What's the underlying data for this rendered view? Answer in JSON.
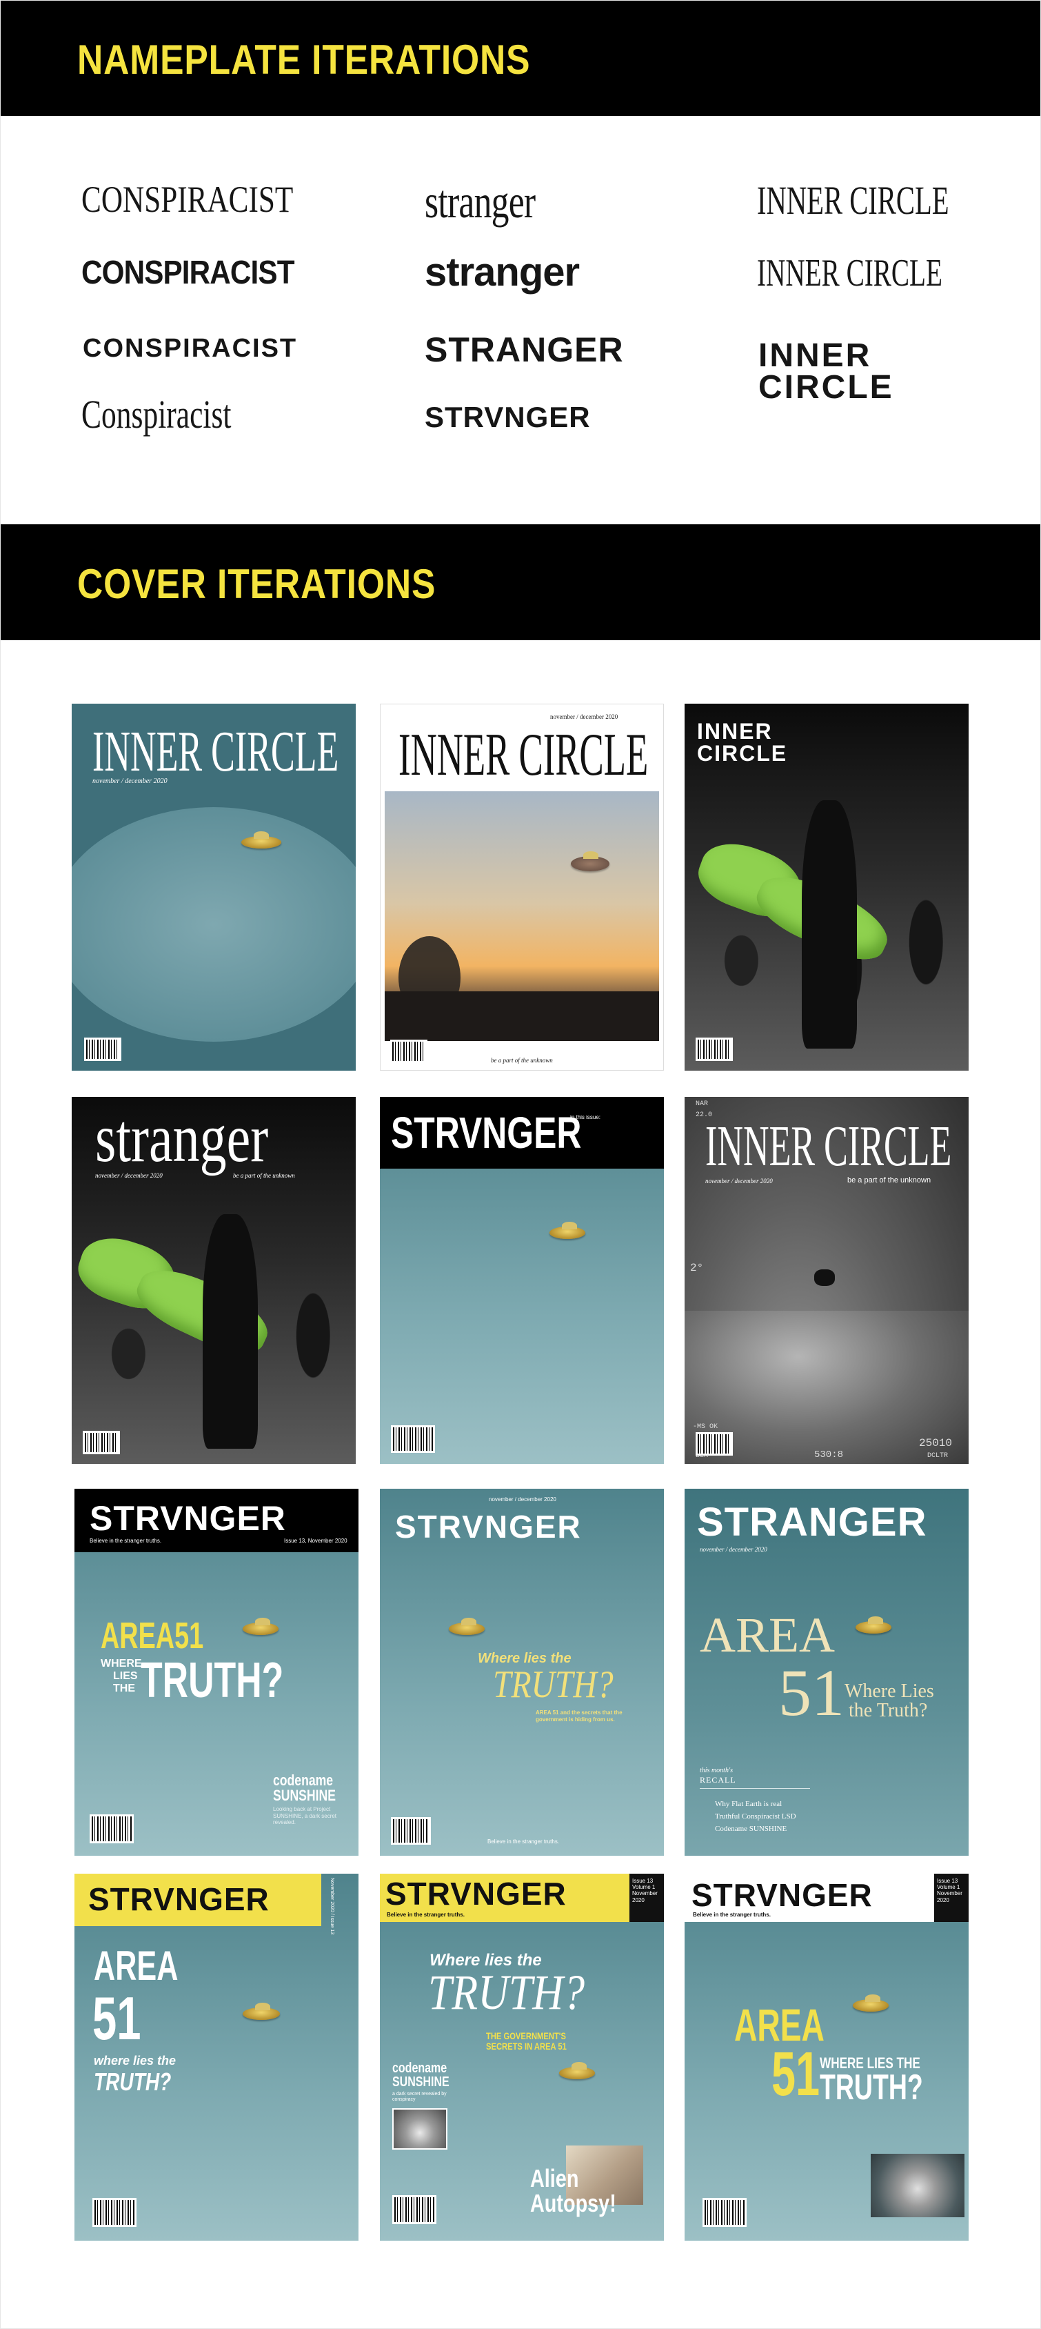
{
  "sections": {
    "nameplate_title": "NAMEPLATE ITERATIONS",
    "cover_title": "COVER ITERATIONS"
  },
  "nameplates": {
    "conspiracist": [
      "CONSPIRACIST",
      "CONSPIRACIST",
      "CONSPIRACIST",
      "Conspiracist"
    ],
    "stranger": [
      "stranger",
      "stranger",
      "STRANGER",
      "STRVNGER"
    ],
    "inner_circle": [
      "INNER CIRCLE",
      "INNER CIRCLE",
      "INNER",
      "CIRCLE"
    ]
  },
  "covers": {
    "c1": {
      "title": "INNER CIRCLE",
      "date": "november / december 2020"
    },
    "c2": {
      "title": "INNER CIRCLE",
      "date": "november / december 2020",
      "tagline": "be a part of the unknown"
    },
    "c3": {
      "title_1": "INNER",
      "title_2": "CIRCLE"
    },
    "c4": {
      "title": "stranger",
      "date": "november / december 2020",
      "tagline": "be a part of the unknown"
    },
    "c5": {
      "title": "STRVNGER",
      "side": "in this issue:"
    },
    "c6": {
      "title": "INNER CIRCLE",
      "date": "november / december 2020",
      "tagline": "be a part of the unknown",
      "hud": [
        "NAR",
        "22.0",
        "2°",
        "25010",
        "-MS OK",
        "530:8",
        "BLK",
        "DCLTR"
      ]
    },
    "c7": {
      "title": "STRVNGER",
      "sub_left": "Believe in the stranger truths.",
      "sub_right": "Issue 13, November 2020",
      "area": "AREA51",
      "where": "WHERE",
      "lies": "LIES",
      "the": "THE",
      "truth": "TRUTH?",
      "code": "codename",
      "sunshine": "SUNSHINE",
      "blurb": "Looking back at Project SUNSHINE, a dark secret revealed."
    },
    "c8": {
      "date": "november / december 2020",
      "title": "STRVNGER",
      "where": "Where lies the",
      "truth": "TRUTH?",
      "blurb": "AREA 51 and the secrets that the government is hiding from us.",
      "footer": "Believe in the stranger truths."
    },
    "c9": {
      "title": "STRANGER",
      "date": "november / december 2020",
      "area": "AREA",
      "num": "51",
      "wl": "Where Lies",
      "tt": "the Truth?",
      "recall_1": "this month's",
      "recall_2": "RECALL",
      "items": [
        "Why Flat Earth is real",
        "Truthful Conspiracist LSD",
        "Codename SUNSHINE"
      ]
    },
    "c10": {
      "title": "STRVNGER",
      "side": "November 2020 / Issue 13",
      "area": "AREA",
      "num": "51",
      "wl": "where lies the",
      "truth": "TRUTH?"
    },
    "c11": {
      "title": "STRVNGER",
      "sub": "Believe in the stranger truths.",
      "issue": "Issue 13 Volume 1 November 2020",
      "where": "Where lies the",
      "truth": "TRUTH?",
      "gov": "THE GOVERNMENT'S SECRETS IN AREA 51",
      "code": "codename",
      "sunshine": "SUNSHINE",
      "blurb": "a dark secret revealed by conspiracy",
      "alien": "Alien",
      "autopsy": "Autopsy!"
    },
    "c12": {
      "title": "STRVNGER",
      "sub": "Believe in the stranger truths.",
      "issue": "Issue 13 Volume 1 November 2020",
      "area": "AREA",
      "num": "51",
      "wlt": "WHERE LIES THE",
      "truth": "TRUTH?"
    }
  }
}
